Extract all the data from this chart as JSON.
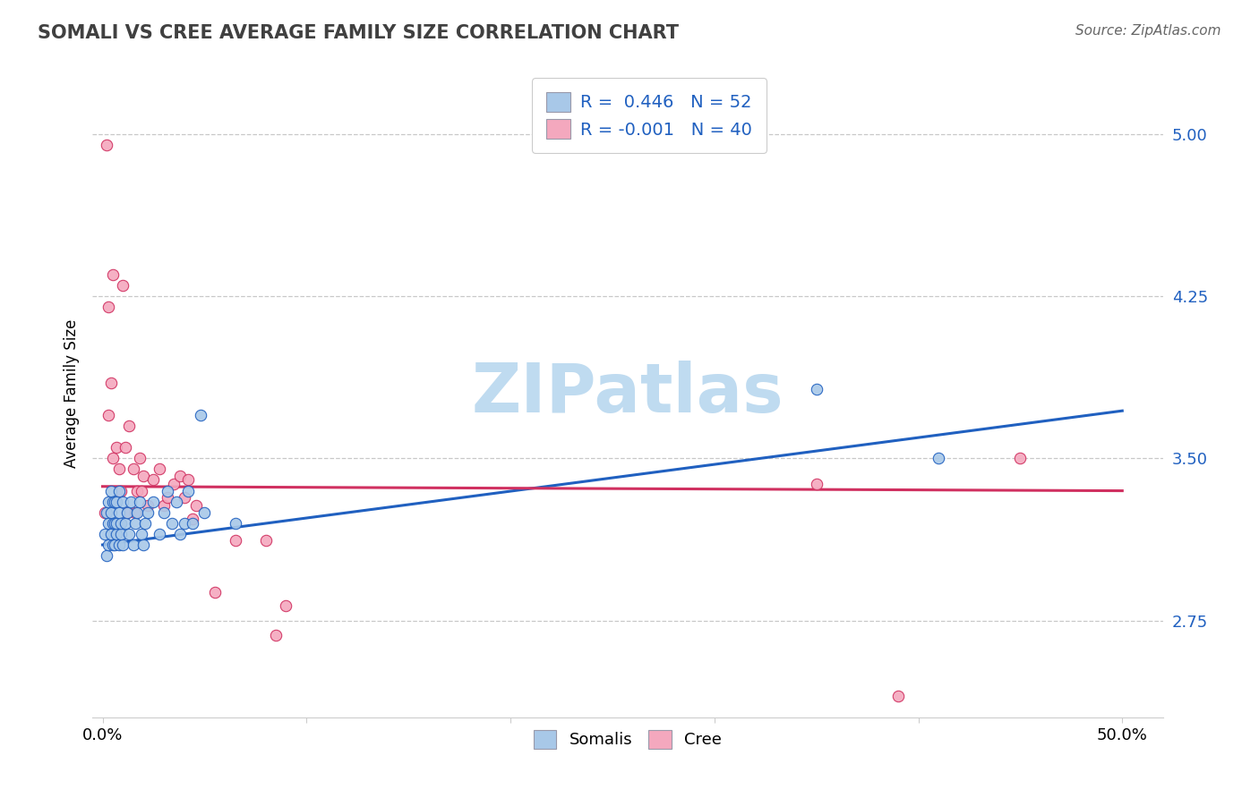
{
  "title": "SOMALI VS CREE AVERAGE FAMILY SIZE CORRELATION CHART",
  "source": "Source: ZipAtlas.com",
  "ylabel": "Average Family Size",
  "y_ticks": [
    2.75,
    3.5,
    4.25,
    5.0
  ],
  "xlim": [
    -0.005,
    0.52
  ],
  "ylim": [
    2.3,
    5.3
  ],
  "somali_R": 0.446,
  "somali_N": 52,
  "cree_R": -0.001,
  "cree_N": 40,
  "somali_color": "#A8C8E8",
  "cree_color": "#F4A8BE",
  "somali_line_color": "#2060C0",
  "cree_line_color": "#D03060",
  "grid_color": "#BBBBBB",
  "background_color": "#FFFFFF",
  "watermark": "ZIPatlas",
  "watermark_color": "#BFDBF0",
  "somali_line_x0": 0.0,
  "somali_line_y0": 3.1,
  "somali_line_x1": 0.5,
  "somali_line_y1": 3.72,
  "cree_line_x0": 0.0,
  "cree_line_y0": 3.37,
  "cree_line_x1": 0.5,
  "cree_line_y1": 3.35,
  "somali_x": [
    0.001,
    0.002,
    0.002,
    0.003,
    0.003,
    0.003,
    0.004,
    0.004,
    0.004,
    0.005,
    0.005,
    0.005,
    0.006,
    0.006,
    0.006,
    0.007,
    0.007,
    0.007,
    0.008,
    0.008,
    0.008,
    0.009,
    0.009,
    0.01,
    0.01,
    0.011,
    0.012,
    0.013,
    0.014,
    0.015,
    0.016,
    0.017,
    0.018,
    0.019,
    0.02,
    0.021,
    0.022,
    0.025,
    0.028,
    0.03,
    0.032,
    0.034,
    0.036,
    0.038,
    0.04,
    0.042,
    0.044,
    0.048,
    0.05,
    0.065,
    0.35,
    0.41
  ],
  "somali_y": [
    3.15,
    3.05,
    3.25,
    3.1,
    3.2,
    3.3,
    3.15,
    3.25,
    3.35,
    3.1,
    3.2,
    3.3,
    3.1,
    3.2,
    3.3,
    3.15,
    3.2,
    3.3,
    3.1,
    3.25,
    3.35,
    3.15,
    3.2,
    3.1,
    3.3,
    3.2,
    3.25,
    3.15,
    3.3,
    3.1,
    3.2,
    3.25,
    3.3,
    3.15,
    3.1,
    3.2,
    3.25,
    3.3,
    3.15,
    3.25,
    3.35,
    3.2,
    3.3,
    3.15,
    3.2,
    3.35,
    3.2,
    3.7,
    3.25,
    3.2,
    3.82,
    3.5
  ],
  "cree_x": [
    0.001,
    0.002,
    0.003,
    0.003,
    0.004,
    0.005,
    0.005,
    0.006,
    0.007,
    0.008,
    0.009,
    0.01,
    0.011,
    0.012,
    0.013,
    0.015,
    0.016,
    0.017,
    0.018,
    0.019,
    0.02,
    0.022,
    0.025,
    0.028,
    0.03,
    0.032,
    0.035,
    0.038,
    0.04,
    0.042,
    0.044,
    0.046,
    0.055,
    0.065,
    0.08,
    0.085,
    0.09,
    0.35,
    0.39,
    0.45
  ],
  "cree_y": [
    3.25,
    4.95,
    3.7,
    4.2,
    3.85,
    3.5,
    4.35,
    3.3,
    3.55,
    3.45,
    3.35,
    4.3,
    3.55,
    3.25,
    3.65,
    3.45,
    3.25,
    3.35,
    3.5,
    3.35,
    3.42,
    3.28,
    3.4,
    3.45,
    3.28,
    3.32,
    3.38,
    3.42,
    3.32,
    3.4,
    3.22,
    3.28,
    2.88,
    3.12,
    3.12,
    2.68,
    2.82,
    3.38,
    2.4,
    3.5
  ]
}
